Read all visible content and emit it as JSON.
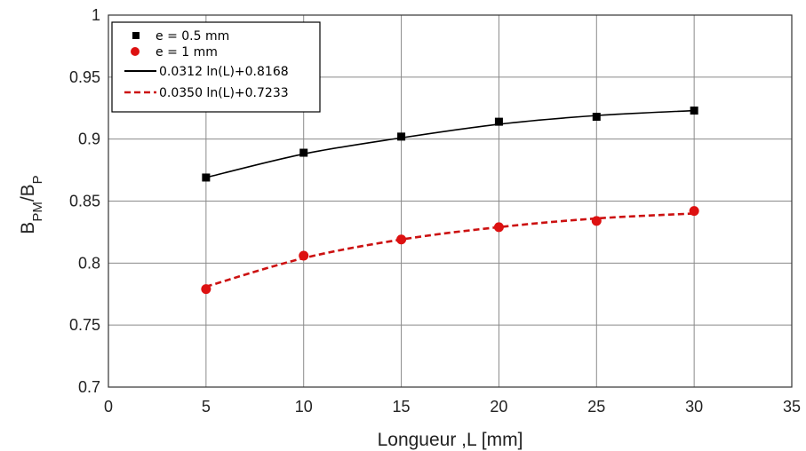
{
  "chart_data": {
    "type": "line",
    "xlabel": "Longueur ,L [mm]",
    "ylabel": {
      "base": "B",
      "sub1": "PM",
      "sep": "/B",
      "sub2": "P"
    },
    "xlim": [
      0,
      35
    ],
    "ylim": [
      0.7,
      1.0
    ],
    "xticks": [
      0,
      5,
      10,
      15,
      20,
      25,
      30,
      35
    ],
    "yticks": [
      0.7,
      0.75,
      0.8,
      0.85,
      0.9,
      0.95,
      1.0
    ],
    "ytick_labels": [
      "0.7",
      "0.75",
      "0.8",
      "0.85",
      "0.9",
      "0.95",
      "1"
    ],
    "grid": true,
    "legend_position": "top-left",
    "series": [
      {
        "name": "e = 0.5 mm",
        "kind": "points",
        "marker": "square",
        "color": "#000000",
        "x": [
          5,
          10,
          15,
          20,
          25,
          30
        ],
        "y": [
          0.869,
          0.889,
          0.902,
          0.914,
          0.918,
          0.923
        ]
      },
      {
        "name": "e = 1 mm",
        "kind": "points",
        "marker": "circle",
        "color": "#dd1111",
        "x": [
          5,
          10,
          15,
          20,
          25,
          30
        ],
        "y": [
          0.779,
          0.806,
          0.819,
          0.829,
          0.834,
          0.842
        ]
      },
      {
        "name": "0.0312 ln(L)+0.8168",
        "kind": "fit",
        "line": "solid",
        "color": "#000000",
        "x": [
          5,
          10,
          15,
          20,
          25,
          30
        ],
        "y": [
          0.869,
          0.888,
          0.901,
          0.912,
          0.919,
          0.923
        ]
      },
      {
        "name": "0.0350 ln(L)+0.7233",
        "kind": "fit",
        "line": "dashed",
        "color": "#cc1111",
        "x": [
          5,
          10,
          15,
          20,
          25,
          30
        ],
        "y": [
          0.781,
          0.804,
          0.819,
          0.829,
          0.836,
          0.84
        ]
      }
    ]
  }
}
